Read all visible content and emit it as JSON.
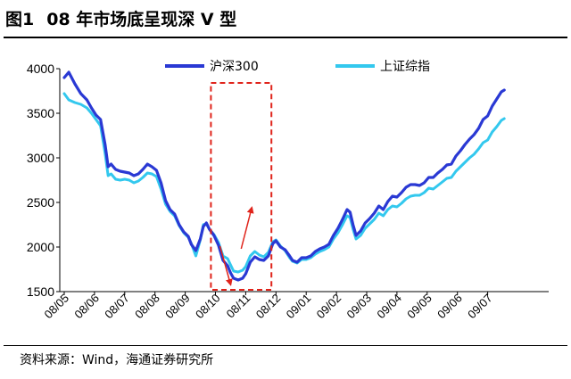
{
  "figure": {
    "number": "图1",
    "title": "08 年市场底呈现深 V 型",
    "source": "资料来源：Wind，海通证券研究所"
  },
  "colors": {
    "hs300": "#2a39d4",
    "shcomp": "#33c8ee",
    "annotation": "#e0241b",
    "axis": "#000000"
  },
  "chart_data": {
    "type": "line",
    "ylim": [
      1500,
      4000
    ],
    "yticks": [
      "1500",
      "2000",
      "2500",
      "3000",
      "3500",
      "4000"
    ],
    "categories": [
      "08/05",
      "08/06",
      "08/07",
      "08/08",
      "08/09",
      "08/10",
      "08/11",
      "08/12",
      "09/01",
      "09/02",
      "09/03",
      "09/04",
      "09/05",
      "09/06",
      "09/07"
    ],
    "legend_position": "top",
    "series": [
      {
        "name": "沪深300",
        "color": "#2a39d4",
        "points": [
          [
            0.0,
            3900
          ],
          [
            0.15,
            3960
          ],
          [
            0.35,
            3830
          ],
          [
            0.55,
            3720
          ],
          [
            0.75,
            3650
          ],
          [
            0.9,
            3560
          ],
          [
            1.05,
            3480
          ],
          [
            1.2,
            3430
          ],
          [
            1.35,
            3150
          ],
          [
            1.45,
            2900
          ],
          [
            1.55,
            2930
          ],
          [
            1.7,
            2870
          ],
          [
            1.85,
            2850
          ],
          [
            2.0,
            2840
          ],
          [
            2.15,
            2830
          ],
          [
            2.3,
            2800
          ],
          [
            2.45,
            2820
          ],
          [
            2.6,
            2870
          ],
          [
            2.75,
            2930
          ],
          [
            2.9,
            2900
          ],
          [
            3.05,
            2860
          ],
          [
            3.2,
            2720
          ],
          [
            3.35,
            2520
          ],
          [
            3.5,
            2420
          ],
          [
            3.65,
            2370
          ],
          [
            3.8,
            2250
          ],
          [
            3.95,
            2170
          ],
          [
            4.1,
            2120
          ],
          [
            4.2,
            2030
          ],
          [
            4.35,
            1960
          ],
          [
            4.5,
            2090
          ],
          [
            4.6,
            2230
          ],
          [
            4.7,
            2270
          ],
          [
            4.8,
            2200
          ],
          [
            4.95,
            2130
          ],
          [
            5.1,
            2020
          ],
          [
            5.25,
            1850
          ],
          [
            5.4,
            1790
          ],
          [
            5.5,
            1710
          ],
          [
            5.6,
            1650
          ],
          [
            5.75,
            1630
          ],
          [
            5.9,
            1650
          ],
          [
            6.0,
            1700
          ],
          [
            6.15,
            1830
          ],
          [
            6.3,
            1890
          ],
          [
            6.45,
            1860
          ],
          [
            6.6,
            1850
          ],
          [
            6.75,
            1900
          ],
          [
            6.9,
            2040
          ],
          [
            7.0,
            2070
          ],
          [
            7.15,
            2000
          ],
          [
            7.3,
            1970
          ],
          [
            7.45,
            1900
          ],
          [
            7.55,
            1850
          ],
          [
            7.7,
            1830
          ],
          [
            7.85,
            1880
          ],
          [
            8.0,
            1880
          ],
          [
            8.15,
            1900
          ],
          [
            8.3,
            1950
          ],
          [
            8.45,
            1980
          ],
          [
            8.6,
            2000
          ],
          [
            8.75,
            2030
          ],
          [
            8.9,
            2130
          ],
          [
            9.05,
            2210
          ],
          [
            9.2,
            2310
          ],
          [
            9.35,
            2420
          ],
          [
            9.45,
            2390
          ],
          [
            9.55,
            2250
          ],
          [
            9.65,
            2130
          ],
          [
            9.8,
            2180
          ],
          [
            9.95,
            2270
          ],
          [
            10.1,
            2320
          ],
          [
            10.25,
            2380
          ],
          [
            10.4,
            2460
          ],
          [
            10.55,
            2420
          ],
          [
            10.7,
            2510
          ],
          [
            10.85,
            2570
          ],
          [
            11.0,
            2560
          ],
          [
            11.15,
            2610
          ],
          [
            11.3,
            2670
          ],
          [
            11.45,
            2700
          ],
          [
            11.6,
            2700
          ],
          [
            11.75,
            2690
          ],
          [
            11.9,
            2720
          ],
          [
            12.05,
            2780
          ],
          [
            12.2,
            2780
          ],
          [
            12.35,
            2830
          ],
          [
            12.5,
            2870
          ],
          [
            12.65,
            2920
          ],
          [
            12.8,
            2930
          ],
          [
            12.95,
            3020
          ],
          [
            13.1,
            3080
          ],
          [
            13.25,
            3150
          ],
          [
            13.4,
            3210
          ],
          [
            13.55,
            3260
          ],
          [
            13.7,
            3330
          ],
          [
            13.85,
            3430
          ],
          [
            14.0,
            3470
          ],
          [
            14.15,
            3580
          ],
          [
            14.3,
            3660
          ],
          [
            14.45,
            3740
          ],
          [
            14.55,
            3760
          ]
        ]
      },
      {
        "name": "上证综指",
        "color": "#33c8ee",
        "points": [
          [
            0.0,
            3720
          ],
          [
            0.15,
            3650
          ],
          [
            0.35,
            3620
          ],
          [
            0.55,
            3600
          ],
          [
            0.75,
            3560
          ],
          [
            0.9,
            3500
          ],
          [
            1.05,
            3430
          ],
          [
            1.2,
            3360
          ],
          [
            1.35,
            3050
          ],
          [
            1.45,
            2800
          ],
          [
            1.55,
            2820
          ],
          [
            1.7,
            2760
          ],
          [
            1.85,
            2750
          ],
          [
            2.0,
            2760
          ],
          [
            2.15,
            2750
          ],
          [
            2.3,
            2720
          ],
          [
            2.45,
            2740
          ],
          [
            2.6,
            2780
          ],
          [
            2.75,
            2830
          ],
          [
            2.9,
            2820
          ],
          [
            3.05,
            2790
          ],
          [
            3.2,
            2650
          ],
          [
            3.35,
            2480
          ],
          [
            3.5,
            2400
          ],
          [
            3.65,
            2350
          ],
          [
            3.8,
            2240
          ],
          [
            3.95,
            2160
          ],
          [
            4.1,
            2110
          ],
          [
            4.2,
            2040
          ],
          [
            4.35,
            1900
          ],
          [
            4.5,
            2080
          ],
          [
            4.6,
            2250
          ],
          [
            4.7,
            2260
          ],
          [
            4.8,
            2200
          ],
          [
            4.95,
            2140
          ],
          [
            5.1,
            2050
          ],
          [
            5.25,
            1900
          ],
          [
            5.4,
            1870
          ],
          [
            5.5,
            1800
          ],
          [
            5.6,
            1730
          ],
          [
            5.75,
            1720
          ],
          [
            5.9,
            1740
          ],
          [
            6.0,
            1780
          ],
          [
            6.15,
            1900
          ],
          [
            6.3,
            1950
          ],
          [
            6.45,
            1910
          ],
          [
            6.6,
            1890
          ],
          [
            6.75,
            1940
          ],
          [
            6.9,
            2060
          ],
          [
            7.0,
            2080
          ],
          [
            7.15,
            2010
          ],
          [
            7.3,
            1960
          ],
          [
            7.45,
            1880
          ],
          [
            7.55,
            1840
          ],
          [
            7.7,
            1820
          ],
          [
            7.85,
            1860
          ],
          [
            8.0,
            1860
          ],
          [
            8.15,
            1880
          ],
          [
            8.3,
            1920
          ],
          [
            8.45,
            1950
          ],
          [
            8.6,
            1970
          ],
          [
            8.75,
            2000
          ],
          [
            8.9,
            2090
          ],
          [
            9.05,
            2160
          ],
          [
            9.2,
            2250
          ],
          [
            9.35,
            2350
          ],
          [
            9.45,
            2330
          ],
          [
            9.55,
            2200
          ],
          [
            9.65,
            2090
          ],
          [
            9.8,
            2130
          ],
          [
            9.95,
            2210
          ],
          [
            10.1,
            2260
          ],
          [
            10.25,
            2310
          ],
          [
            10.4,
            2380
          ],
          [
            10.55,
            2350
          ],
          [
            10.7,
            2420
          ],
          [
            10.85,
            2460
          ],
          [
            11.0,
            2450
          ],
          [
            11.15,
            2490
          ],
          [
            11.3,
            2540
          ],
          [
            11.45,
            2570
          ],
          [
            11.6,
            2580
          ],
          [
            11.75,
            2580
          ],
          [
            11.9,
            2610
          ],
          [
            12.05,
            2660
          ],
          [
            12.2,
            2650
          ],
          [
            12.35,
            2690
          ],
          [
            12.5,
            2730
          ],
          [
            12.65,
            2770
          ],
          [
            12.8,
            2780
          ],
          [
            12.95,
            2850
          ],
          [
            13.1,
            2900
          ],
          [
            13.25,
            2950
          ],
          [
            13.4,
            3000
          ],
          [
            13.55,
            3040
          ],
          [
            13.7,
            3100
          ],
          [
            13.85,
            3170
          ],
          [
            14.0,
            3200
          ],
          [
            14.15,
            3290
          ],
          [
            14.3,
            3350
          ],
          [
            14.45,
            3420
          ],
          [
            14.55,
            3440
          ]
        ]
      }
    ],
    "highlight": {
      "x_start": 4.85,
      "x_end": 6.85,
      "y_low": 1520,
      "y_high": 3840
    },
    "arrows": [
      {
        "from": [
          5.15,
          2010
        ],
        "to": [
          5.5,
          1580
        ]
      },
      {
        "from": [
          5.85,
          1980
        ],
        "to": [
          6.2,
          2440
        ]
      }
    ]
  }
}
